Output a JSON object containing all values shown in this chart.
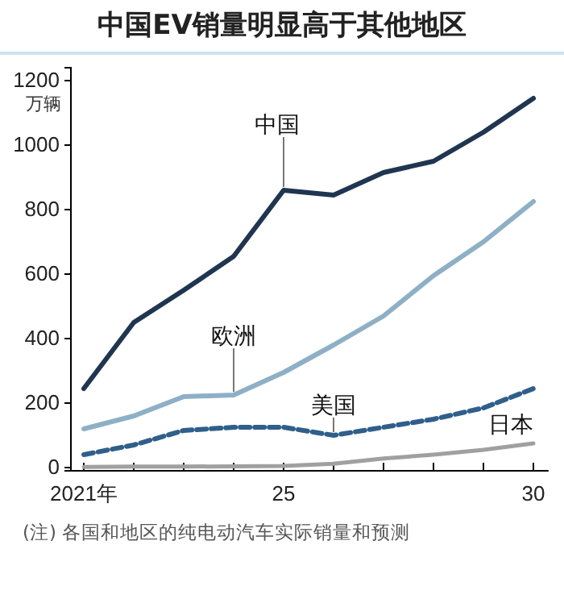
{
  "chart_data": {
    "type": "line",
    "title": "中国EV销量明显高于其他地区",
    "ylabel": "万辆",
    "x": [
      2021,
      2022,
      2023,
      2024,
      2025,
      2026,
      2027,
      2028,
      2029,
      2030
    ],
    "xlim": [
      2020.9,
      2030.3
    ],
    "xticks": [
      {
        "value": 2021,
        "label": "2021年"
      },
      {
        "value": 2022,
        "label": null
      },
      {
        "value": 2023,
        "label": null
      },
      {
        "value": 2024,
        "label": null
      },
      {
        "value": 2025,
        "label": "25"
      },
      {
        "value": 2026,
        "label": null
      },
      {
        "value": 2027,
        "label": null
      },
      {
        "value": 2028,
        "label": null
      },
      {
        "value": 2029,
        "label": null
      },
      {
        "value": 2030,
        "label": "30"
      }
    ],
    "ylim": [
      -10,
      1240
    ],
    "yticks": [
      0,
      200,
      400,
      600,
      800,
      1000,
      1200
    ],
    "series": [
      {
        "name": "中国",
        "color": "#1f3550",
        "values": [
          245,
          450,
          550,
          655,
          860,
          845,
          915,
          950,
          1040,
          1145
        ]
      },
      {
        "name": "欧洲",
        "color": "#8eb0c6",
        "values": [
          120,
          160,
          220,
          225,
          295,
          380,
          470,
          595,
          700,
          825
        ]
      },
      {
        "name": "美国",
        "color": "#2f5f8a",
        "line_style": "dashed",
        "values": [
          40,
          70,
          115,
          125,
          125,
          100,
          125,
          150,
          185,
          245
        ]
      },
      {
        "name": "日本",
        "color": "#a0a0a0",
        "values": [
          2,
          3,
          3,
          4,
          5,
          12,
          28,
          40,
          55,
          75
        ]
      }
    ],
    "grid": false,
    "annotations": [
      "(注) 各国和地区的纯电动汽车实际销量和预测"
    ]
  }
}
